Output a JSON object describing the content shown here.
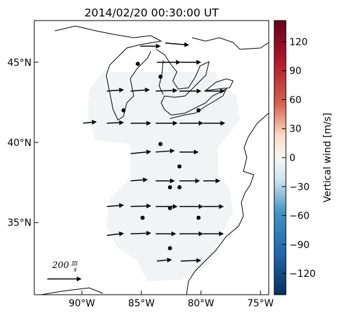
{
  "title": "2014/02/20 00:30:00 UT",
  "map": {
    "xlim": [
      -94,
      -74.3
    ],
    "ylim": [
      30.5,
      47.6
    ],
    "xticks": [
      {
        "value": -90,
        "label": "90°W"
      },
      {
        "value": -85,
        "label": "85°W"
      },
      {
        "value": -80,
        "label": "80°W"
      },
      {
        "value": -75,
        "label": "75°W"
      }
    ],
    "yticks": [
      {
        "value": 35,
        "label": "35°N"
      },
      {
        "value": 40,
        "label": "40°N"
      },
      {
        "value": 45,
        "label": "45°N"
      }
    ],
    "vectors": [
      {
        "lon": -83.0,
        "lat": 46.2,
        "u": 140,
        "v": -12
      },
      {
        "lon": -85.1,
        "lat": 46.0,
        "u": 120,
        "v": 0
      },
      {
        "lon": -83.7,
        "lat": 45.0,
        "u": 140,
        "v": 0
      },
      {
        "lon": -81.7,
        "lat": 45.0,
        "u": 120,
        "v": 0
      },
      {
        "lon": -87.9,
        "lat": 43.2,
        "u": 100,
        "v": 8
      },
      {
        "lon": -85.9,
        "lat": 43.2,
        "u": 112,
        "v": 8
      },
      {
        "lon": -83.8,
        "lat": 43.2,
        "u": 128,
        "v": 4
      },
      {
        "lon": -81.8,
        "lat": 43.2,
        "u": 128,
        "v": 0
      },
      {
        "lon": -79.7,
        "lat": 43.2,
        "u": 120,
        "v": 0
      },
      {
        "lon": -89.9,
        "lat": 41.2,
        "u": 80,
        "v": 8
      },
      {
        "lon": -87.9,
        "lat": 41.2,
        "u": 100,
        "v": 4
      },
      {
        "lon": -85.9,
        "lat": 41.2,
        "u": 120,
        "v": 0
      },
      {
        "lon": -83.8,
        "lat": 41.2,
        "u": 128,
        "v": 0
      },
      {
        "lon": -81.8,
        "lat": 41.2,
        "u": 140,
        "v": 0
      },
      {
        "lon": -79.8,
        "lat": 41.2,
        "u": 128,
        "v": 0
      },
      {
        "lon": -85.9,
        "lat": 39.3,
        "u": 120,
        "v": 12
      },
      {
        "lon": -83.8,
        "lat": 39.4,
        "u": 112,
        "v": 8
      },
      {
        "lon": -81.8,
        "lat": 39.4,
        "u": 112,
        "v": 0
      },
      {
        "lon": -85.9,
        "lat": 37.6,
        "u": 100,
        "v": 8
      },
      {
        "lon": -83.8,
        "lat": 37.6,
        "u": 112,
        "v": 0
      },
      {
        "lon": -81.8,
        "lat": 37.6,
        "u": 120,
        "v": 0
      },
      {
        "lon": -79.8,
        "lat": 37.6,
        "u": 100,
        "v": 0
      },
      {
        "lon": -87.9,
        "lat": 36.0,
        "u": 100,
        "v": 8
      },
      {
        "lon": -85.9,
        "lat": 36.0,
        "u": 120,
        "v": 4
      },
      {
        "lon": -83.8,
        "lat": 36.0,
        "u": 128,
        "v": 0
      },
      {
        "lon": -81.8,
        "lat": 36.0,
        "u": 140,
        "v": 0
      },
      {
        "lon": -79.8,
        "lat": 36.0,
        "u": 120,
        "v": 0
      },
      {
        "lon": -87.9,
        "lat": 34.2,
        "u": 100,
        "v": 12
      },
      {
        "lon": -85.9,
        "lat": 34.3,
        "u": 120,
        "v": 4
      },
      {
        "lon": -83.8,
        "lat": 34.3,
        "u": 120,
        "v": 0
      },
      {
        "lon": -81.8,
        "lat": 34.3,
        "u": 140,
        "v": 0
      },
      {
        "lon": -79.8,
        "lat": 34.3,
        "u": 120,
        "v": 0
      },
      {
        "lon": -83.7,
        "lat": 32.6,
        "u": 88,
        "v": 8
      },
      {
        "lon": -81.7,
        "lat": 32.6,
        "u": 120,
        "v": 4
      }
    ],
    "dots": [
      {
        "lon": -85.3,
        "lat": 44.9
      },
      {
        "lon": -83.4,
        "lat": 44.1
      },
      {
        "lon": -86.5,
        "lat": 42.0
      },
      {
        "lon": -80.2,
        "lat": 42.0
      },
      {
        "lon": -83.4,
        "lat": 39.9
      },
      {
        "lon": -81.8,
        "lat": 38.5
      },
      {
        "lon": -82.6,
        "lat": 37.2
      },
      {
        "lon": -81.8,
        "lat": 37.2
      },
      {
        "lon": -82.6,
        "lat": 35.9
      },
      {
        "lon": -84.9,
        "lat": 35.3
      },
      {
        "lon": -80.2,
        "lat": 35.3
      },
      {
        "lon": -82.6,
        "lat": 33.4
      }
    ],
    "scale": {
      "value": 200,
      "unit_numerator": "m",
      "unit_denominator": "s"
    }
  },
  "colorbar": {
    "label": "Vertical wind [m/s]",
    "lim": [
      -142,
      142
    ],
    "ticks": [
      {
        "value": -120,
        "label": "−120"
      },
      {
        "value": -90,
        "label": "−90"
      },
      {
        "value": -60,
        "label": "−60"
      },
      {
        "value": -30,
        "label": "−30"
      },
      0,
      30,
      60,
      90,
      120
    ]
  }
}
